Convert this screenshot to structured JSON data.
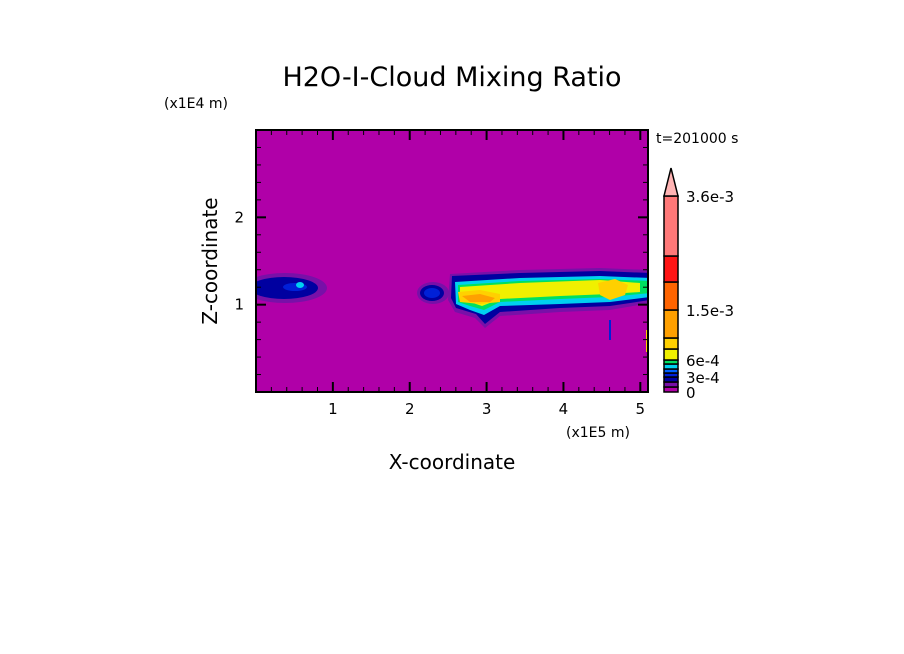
{
  "chart_data": {
    "type": "heatmap",
    "title": "H2O-I-Cloud Mixing Ratio",
    "xlabel": "X-coordinate",
    "ylabel": "Z-coordinate",
    "x_scale_label": "(x1E5 m)",
    "y_scale_label": "(x1E4 m)",
    "time_label": "t=201000 s",
    "xlim": [
      0,
      5.1
    ],
    "ylim": [
      0,
      3.0
    ],
    "x_ticks": [
      "1",
      "2",
      "3",
      "4",
      "5"
    ],
    "x_tick_values": [
      1,
      2,
      3,
      4,
      5
    ],
    "y_ticks": [
      "1",
      "2"
    ],
    "y_tick_values": [
      1,
      2
    ],
    "background_value": 0,
    "colorbar": {
      "labels": [
        "0",
        "3e-4",
        "6e-4",
        "1.5e-3",
        "3.6e-3"
      ],
      "colors": [
        "#b000a8",
        "#7810a8",
        "#0000a0",
        "#0020d8",
        "#0060ff",
        "#00d0f0",
        "#00e060",
        "#f0f000",
        "#ffd000",
        "#ffa000",
        "#ff6400",
        "#ff1414",
        "#ff7878",
        "#ffb4b4"
      ],
      "extend": "max"
    }
  }
}
